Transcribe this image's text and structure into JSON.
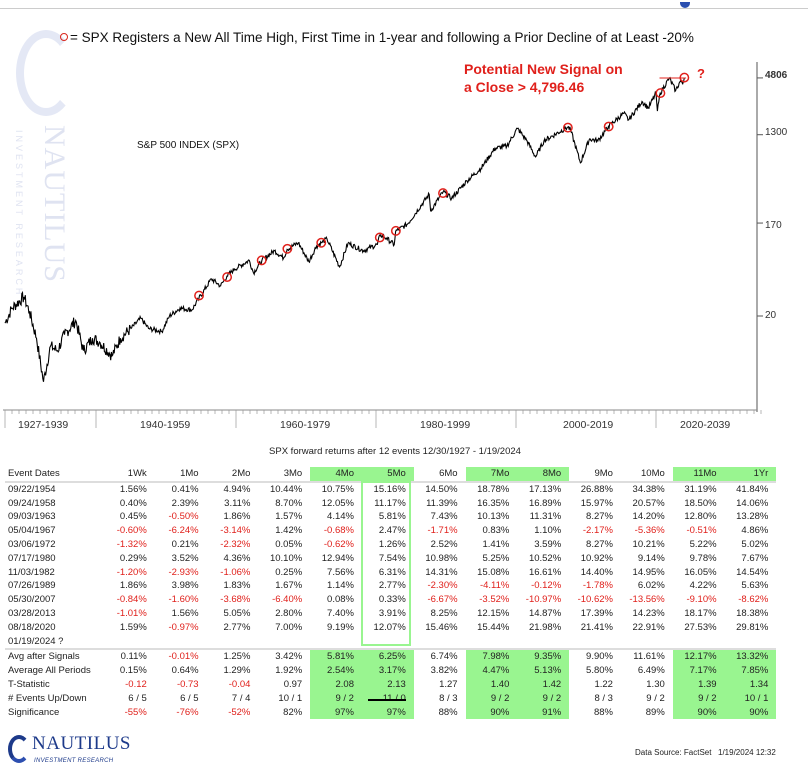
{
  "chart_data": {
    "type": "line",
    "title": "SPX Registers a New All Time High, First Time in 1-year and following a Prior Decline of at Least -20%",
    "legend_marker": "o",
    "legend_text": "= SPX Registers a New All Time High, First Time in 1-year and following a Prior Decline of at Least -20%",
    "series_label": "S&P 500 INDEX (SPX)",
    "annotation_line1": "Potential New Signal on",
    "annotation_line2": "a Close > 4,796.46",
    "annotation_mark": "?",
    "yscale": "log",
    "ylim": [
      3,
      6500
    ],
    "y_ticks": [
      "4806",
      "1300",
      "170",
      "20"
    ],
    "y_tick_values": [
      4806,
      1300,
      170,
      20
    ],
    "x_labels": [
      "1927-1939",
      "1940-1959",
      "1960-1979",
      "1980-1999",
      "2000-2019",
      "2020-2039"
    ],
    "xlim": [
      1927,
      2035
    ],
    "series": [
      {
        "name": "S&P 500 INDEX (SPX)",
        "x": [
          1927.0,
          1928.0,
          1929.7,
          1930.5,
          1931.5,
          1932.5,
          1933.5,
          1934.5,
          1935.5,
          1937.1,
          1938.2,
          1939.5,
          1940.5,
          1942.3,
          1943.5,
          1945.0,
          1946.4,
          1947.5,
          1949.4,
          1950.5,
          1952.0,
          1953.7,
          1954.7,
          1956.5,
          1957.8,
          1958.7,
          1959.8,
          1961.9,
          1962.5,
          1963.7,
          1965.5,
          1966.8,
          1967.3,
          1968.9,
          1970.4,
          1971.5,
          1972.2,
          1973.0,
          1974.8,
          1976.0,
          1978.2,
          1980.2,
          1980.6,
          1981.5,
          1982.6,
          1982.8,
          1984.5,
          1987.6,
          1987.8,
          1989.6,
          1990.8,
          1993.0,
          1995.0,
          1997.0,
          1998.7,
          2000.2,
          2001.5,
          2002.8,
          2004.0,
          2007.4,
          2007.8,
          2009.2,
          2010.5,
          2011.7,
          2013.2,
          2015.4,
          2016.1,
          2018.0,
          2018.9,
          2020.0,
          2020.2,
          2020.6,
          2021.9,
          2022.8,
          2023.5,
          2023.8,
          2024.05
        ],
        "y": [
          17,
          24,
          31,
          22,
          12,
          4.4,
          10,
          9,
          13,
          18,
          9,
          12,
          11,
          8,
          12,
          15,
          19,
          15,
          14,
          20,
          24,
          23,
          30,
          47,
          40,
          50,
          59,
          72,
          54,
          72,
          90,
          76,
          93,
          108,
          70,
          100,
          108,
          118,
          62,
          107,
          90,
          104,
          130,
          120,
          103,
          140,
          166,
          330,
          225,
          350,
          300,
          450,
          600,
          950,
          1000,
          1500,
          1150,
          780,
          1130,
          1550,
          1450,
          680,
          1180,
          1130,
          1570,
          2130,
          1830,
          2800,
          2400,
          3380,
          2240,
          3390,
          4790,
          3580,
          4500,
          4150,
          4840
        ]
      }
    ],
    "signals": [
      {
        "date": "09/22/1954",
        "x": 1954.72,
        "y": 32
      },
      {
        "date": "09/24/1958",
        "x": 1958.73,
        "y": 49
      },
      {
        "date": "09/03/1963",
        "x": 1963.67,
        "y": 72
      },
      {
        "date": "05/04/1967",
        "x": 1967.34,
        "y": 94
      },
      {
        "date": "03/06/1972",
        "x": 1972.18,
        "y": 108
      },
      {
        "date": "07/17/1980",
        "x": 1980.54,
        "y": 122
      },
      {
        "date": "11/03/1982",
        "x": 1982.84,
        "y": 142
      },
      {
        "date": "07/26/1989",
        "x": 1989.57,
        "y": 339
      },
      {
        "date": "05/30/2007",
        "x": 2007.41,
        "y": 1530
      },
      {
        "date": "03/28/2013",
        "x": 2013.24,
        "y": 1569
      },
      {
        "date": "08/18/2020",
        "x": 2020.63,
        "y": 3390
      },
      {
        "date": "01/19/2024",
        "x": 2024.05,
        "y": 4840
      }
    ],
    "threshold": 4796.46,
    "watermark": "NAUTILUS INVESTMENT RESEARCH"
  },
  "table": {
    "title": "SPX forward returns after 12 events 12/30/1927 - 1/19/2024",
    "headers": [
      "Event Dates",
      "1Wk",
      "1Mo",
      "2Mo",
      "3Mo",
      "4Mo",
      "5Mo",
      "6Mo",
      "7Mo",
      "8Mo",
      "9Mo",
      "10Mo",
      "11Mo",
      "1Yr"
    ],
    "highlight_columns": [
      "4Mo",
      "5Mo",
      "7Mo",
      "8Mo",
      "11Mo",
      "1Yr"
    ],
    "highlight_color": "#99f590",
    "negative_color": "#e0201b",
    "rows": [
      [
        "09/22/1954",
        "1.56%",
        "0.41%",
        "4.94%",
        "10.44%",
        "10.75%",
        "15.16%",
        "14.50%",
        "18.78%",
        "17.13%",
        "26.88%",
        "34.38%",
        "31.19%",
        "41.84%"
      ],
      [
        "09/24/1958",
        "0.40%",
        "2.39%",
        "3.11%",
        "8.70%",
        "12.05%",
        "11.17%",
        "11.39%",
        "16.35%",
        "16.89%",
        "15.97%",
        "20.57%",
        "18.50%",
        "14.06%"
      ],
      [
        "09/03/1963",
        "0.45%",
        "-0.50%",
        "1.86%",
        "1.57%",
        "4.14%",
        "5.81%",
        "7.43%",
        "10.13%",
        "11.31%",
        "8.27%",
        "14.20%",
        "12.80%",
        "13.28%"
      ],
      [
        "05/04/1967",
        "-0.60%",
        "-6.24%",
        "-3.14%",
        "1.42%",
        "-0.68%",
        "2.47%",
        "-1.71%",
        "0.83%",
        "1.10%",
        "-2.17%",
        "-5.36%",
        "-0.51%",
        "4.86%"
      ],
      [
        "03/06/1972",
        "-1.32%",
        "0.21%",
        "-2.32%",
        "0.05%",
        "-0.62%",
        "1.26%",
        "2.52%",
        "1.41%",
        "3.59%",
        "8.27%",
        "10.21%",
        "5.22%",
        "5.02%"
      ],
      [
        "07/17/1980",
        "0.29%",
        "3.52%",
        "4.36%",
        "10.10%",
        "12.94%",
        "7.54%",
        "10.98%",
        "5.25%",
        "10.52%",
        "10.92%",
        "9.14%",
        "9.78%",
        "7.67%"
      ],
      [
        "11/03/1982",
        "-1.20%",
        "-2.93%",
        "-1.06%",
        "0.25%",
        "7.56%",
        "6.31%",
        "14.31%",
        "15.08%",
        "16.61%",
        "14.40%",
        "14.95%",
        "16.05%",
        "14.54%"
      ],
      [
        "07/26/1989",
        "1.86%",
        "3.98%",
        "1.83%",
        "1.67%",
        "1.14%",
        "2.77%",
        "-2.30%",
        "-4.11%",
        "-0.12%",
        "-1.78%",
        "6.02%",
        "4.22%",
        "5.63%"
      ],
      [
        "05/30/2007",
        "-0.84%",
        "-1.60%",
        "-3.68%",
        "-6.40%",
        "0.08%",
        "0.33%",
        "-6.67%",
        "-3.52%",
        "-10.97%",
        "-10.62%",
        "-13.56%",
        "-9.10%",
        "-8.62%"
      ],
      [
        "03/28/2013",
        "-1.01%",
        "1.56%",
        "5.05%",
        "2.80%",
        "7.40%",
        "3.91%",
        "8.25%",
        "12.15%",
        "14.87%",
        "17.39%",
        "14.23%",
        "18.17%",
        "18.38%"
      ],
      [
        "08/18/2020",
        "1.59%",
        "-0.97%",
        "2.77%",
        "7.00%",
        "9.19%",
        "12.07%",
        "15.46%",
        "15.44%",
        "21.98%",
        "21.41%",
        "22.91%",
        "27.53%",
        "29.81%"
      ],
      [
        "01/19/2024 ?",
        "",
        "",
        "",
        "",
        "",
        "",
        "",
        "",
        "",
        "",
        "",
        "",
        ""
      ]
    ],
    "summary": [
      [
        "Avg after Signals",
        "0.11%",
        "-0.01%",
        "1.25%",
        "3.42%",
        "5.81%",
        "6.25%",
        "6.74%",
        "7.98%",
        "9.35%",
        "9.90%",
        "11.61%",
        "12.17%",
        "13.32%"
      ],
      [
        "Average All Periods",
        "0.15%",
        "0.64%",
        "1.29%",
        "1.92%",
        "2.54%",
        "3.17%",
        "3.82%",
        "4.47%",
        "5.13%",
        "5.80%",
        "6.49%",
        "7.17%",
        "7.85%"
      ],
      [
        "T-Statistic",
        "-0.12",
        "-0.73",
        "-0.04",
        "0.97",
        "2.08",
        "2.13",
        "1.27",
        "1.40",
        "1.42",
        "1.22",
        "1.30",
        "1.39",
        "1.34"
      ],
      [
        "# Events Up/Down",
        "6 / 5",
        "6 / 5",
        "7 / 4",
        "10 / 1",
        "9 / 2",
        "11 / 0",
        "8 / 3",
        "9 / 2",
        "9 / 2",
        "8 / 3",
        "9 / 2",
        "9 / 2",
        "10 / 1"
      ],
      [
        "Significance",
        "-55%",
        "-76%",
        "-52%",
        "82%",
        "97%",
        "97%",
        "88%",
        "90%",
        "91%",
        "88%",
        "89%",
        "90%",
        "90%"
      ]
    ]
  },
  "footer": {
    "logo_name": "NAUTILUS",
    "logo_sub": "INVESTMENT RESEARCH",
    "data_source": "Data Source: FactSet",
    "timestamp": "1/19/2024 12:32"
  }
}
